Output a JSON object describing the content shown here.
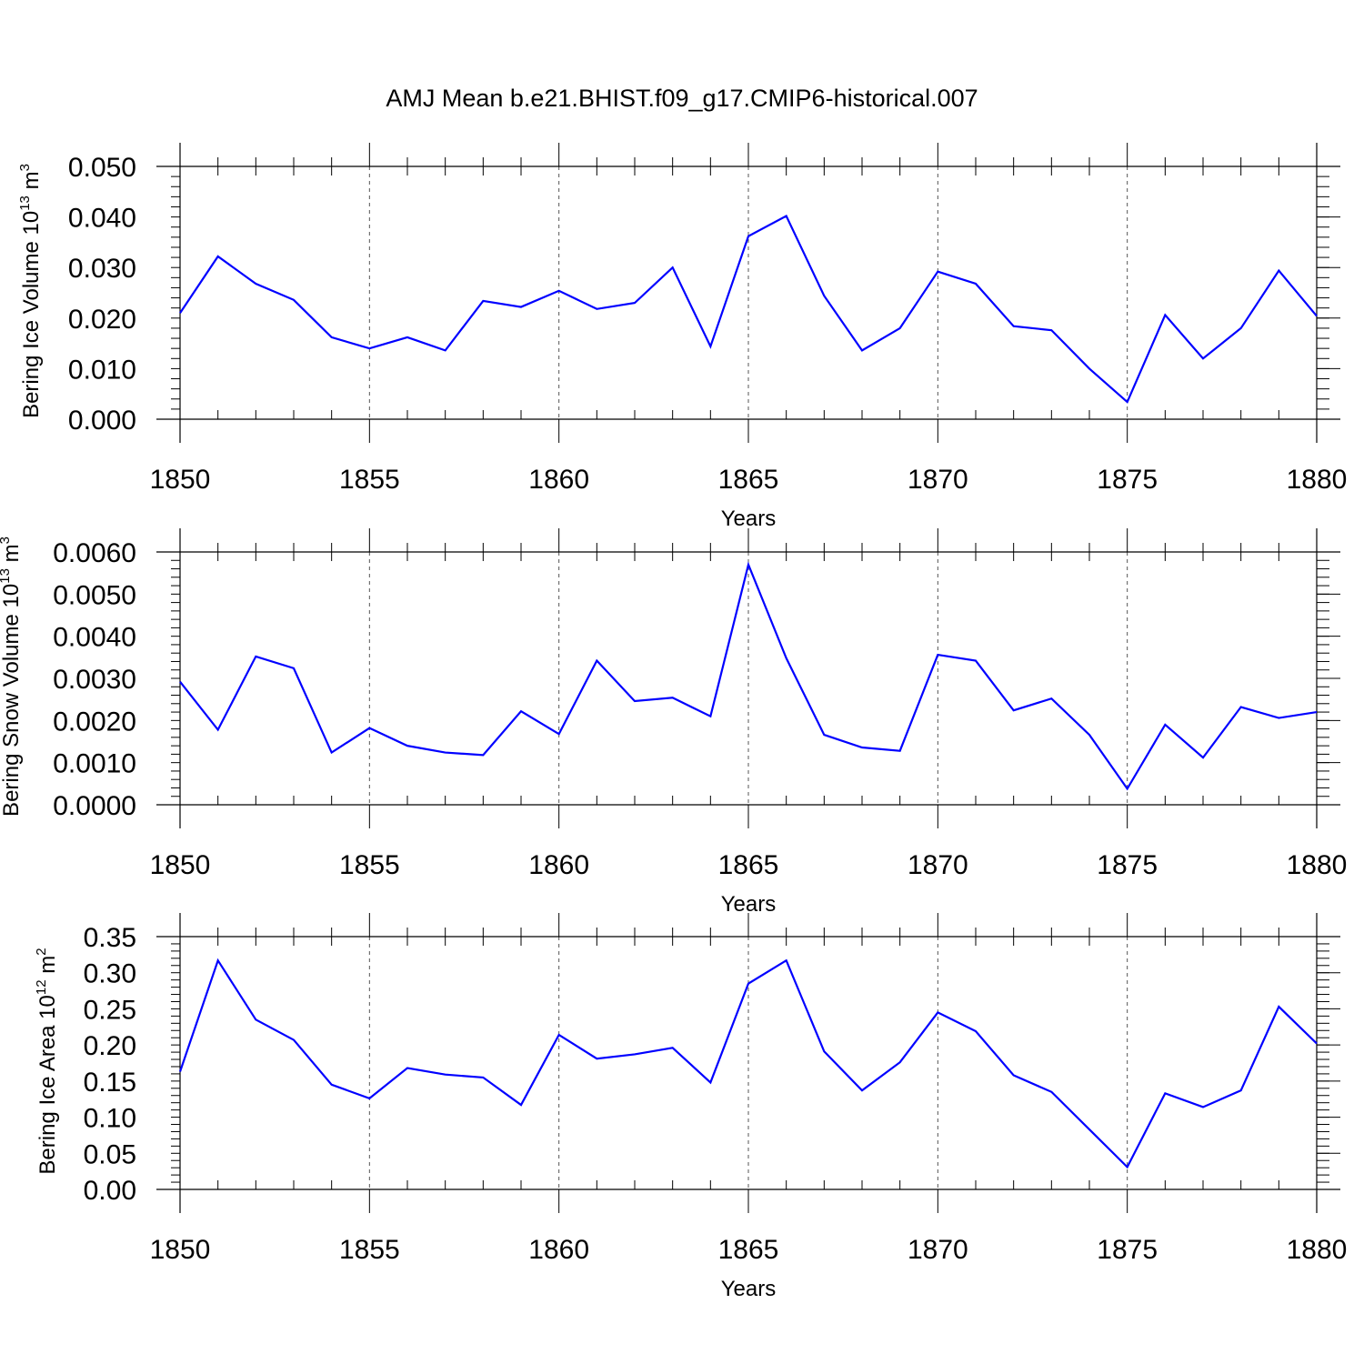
{
  "title": "AMJ Mean b.e21.BHIST.f09_g17.CMIP6-historical.007",
  "colors": {
    "line": "#0000ff",
    "grid": "#555555",
    "axis": "#000000",
    "background": "#ffffff"
  },
  "chart_data": [
    {
      "type": "line",
      "ylabel": {
        "text": "Bering Ice Volume 10",
        "sup": "13",
        "unit": " m",
        "unit_sup": "3"
      },
      "xlabel": "Years",
      "xlim": [
        1850,
        1880
      ],
      "ylim": [
        0.0,
        0.05
      ],
      "yticks": [
        0.0,
        0.01,
        0.02,
        0.03,
        0.04,
        0.05
      ],
      "ytick_labels": [
        "0.000",
        "0.010",
        "0.020",
        "0.030",
        "0.040",
        "0.050"
      ],
      "yminor_step": 0.002,
      "xticks": [
        1850,
        1855,
        1860,
        1865,
        1870,
        1875,
        1880
      ],
      "xtick_labels": [
        "1850",
        "1855",
        "1860",
        "1865",
        "1870",
        "1875",
        "1880"
      ],
      "grid_x": [
        1855,
        1860,
        1865,
        1870,
        1875
      ],
      "series": [
        {
          "name": "Bering Ice Volume",
          "x": [
            1850,
            1851,
            1852,
            1853,
            1854,
            1855,
            1856,
            1857,
            1858,
            1859,
            1860,
            1861,
            1862,
            1863,
            1864,
            1865,
            1866,
            1867,
            1868,
            1869,
            1870,
            1871,
            1872,
            1873,
            1874,
            1875,
            1876,
            1877,
            1878,
            1879,
            1880
          ],
          "values": [
            0.021,
            0.0322,
            0.0268,
            0.0236,
            0.0162,
            0.014,
            0.0162,
            0.0136,
            0.0234,
            0.0222,
            0.0254,
            0.0218,
            0.023,
            0.03,
            0.0144,
            0.0362,
            0.0402,
            0.0244,
            0.0136,
            0.018,
            0.0292,
            0.0268,
            0.0184,
            0.0176,
            0.01,
            0.0034,
            0.0206,
            0.012,
            0.018,
            0.0294,
            0.0204
          ]
        }
      ]
    },
    {
      "type": "line",
      "ylabel": {
        "text": "Bering Snow Volume 10",
        "sup": "13",
        "unit": " m",
        "unit_sup": "3"
      },
      "xlabel": "Years",
      "xlim": [
        1850,
        1880
      ],
      "ylim": [
        0.0,
        0.006
      ],
      "yticks": [
        0.0,
        0.001,
        0.002,
        0.003,
        0.004,
        0.005,
        0.006
      ],
      "ytick_labels": [
        "0.0000",
        "0.0010",
        "0.0020",
        "0.0030",
        "0.0040",
        "0.0050",
        "0.0060"
      ],
      "yminor_step": 0.0002,
      "xticks": [
        1850,
        1855,
        1860,
        1865,
        1870,
        1875,
        1880
      ],
      "xtick_labels": [
        "1850",
        "1855",
        "1860",
        "1865",
        "1870",
        "1875",
        "1880"
      ],
      "grid_x": [
        1855,
        1860,
        1865,
        1870,
        1875
      ],
      "series": [
        {
          "name": "Bering Snow Volume",
          "x": [
            1850,
            1851,
            1852,
            1853,
            1854,
            1855,
            1856,
            1857,
            1858,
            1859,
            1860,
            1861,
            1862,
            1863,
            1864,
            1865,
            1866,
            1867,
            1868,
            1869,
            1870,
            1871,
            1872,
            1873,
            1874,
            1875,
            1876,
            1877,
            1878,
            1879,
            1880
          ],
          "values": [
            0.00292,
            0.00178,
            0.00352,
            0.00324,
            0.00124,
            0.00182,
            0.0014,
            0.00124,
            0.00118,
            0.00222,
            0.00168,
            0.00342,
            0.00246,
            0.00254,
            0.0021,
            0.0057,
            0.00348,
            0.00166,
            0.00136,
            0.00128,
            0.00356,
            0.00342,
            0.00224,
            0.00252,
            0.00166,
            0.00038,
            0.0019,
            0.00112,
            0.00232,
            0.00206,
            0.0022
          ]
        }
      ]
    },
    {
      "type": "line",
      "ylabel": {
        "text": "Bering Ice Area 10",
        "sup": "12",
        "unit": " m",
        "unit_sup": "2"
      },
      "xlabel": "Years",
      "xlim": [
        1850,
        1880
      ],
      "ylim": [
        0.0,
        0.35
      ],
      "yticks": [
        0.0,
        0.05,
        0.1,
        0.15,
        0.2,
        0.25,
        0.3,
        0.35
      ],
      "ytick_labels": [
        "0.00",
        "0.05",
        "0.10",
        "0.15",
        "0.20",
        "0.25",
        "0.30",
        "0.35"
      ],
      "yminor_step": 0.01,
      "xticks": [
        1850,
        1855,
        1860,
        1865,
        1870,
        1875,
        1880
      ],
      "xtick_labels": [
        "1850",
        "1855",
        "1860",
        "1865",
        "1870",
        "1875",
        "1880"
      ],
      "grid_x": [
        1855,
        1860,
        1865,
        1870,
        1875
      ],
      "series": [
        {
          "name": "Bering Ice Area",
          "x": [
            1850,
            1851,
            1852,
            1853,
            1854,
            1855,
            1856,
            1857,
            1858,
            1859,
            1860,
            1861,
            1862,
            1863,
            1864,
            1865,
            1866,
            1867,
            1868,
            1869,
            1870,
            1871,
            1872,
            1873,
            1874,
            1875,
            1876,
            1877,
            1878,
            1879,
            1880
          ],
          "values": [
            0.163,
            0.317,
            0.235,
            0.207,
            0.145,
            0.126,
            0.168,
            0.159,
            0.155,
            0.117,
            0.214,
            0.181,
            0.187,
            0.196,
            0.148,
            0.285,
            0.317,
            0.191,
            0.137,
            0.176,
            0.245,
            0.219,
            0.158,
            0.135,
            0.083,
            0.031,
            0.133,
            0.114,
            0.137,
            0.253,
            0.202
          ]
        }
      ]
    }
  ]
}
